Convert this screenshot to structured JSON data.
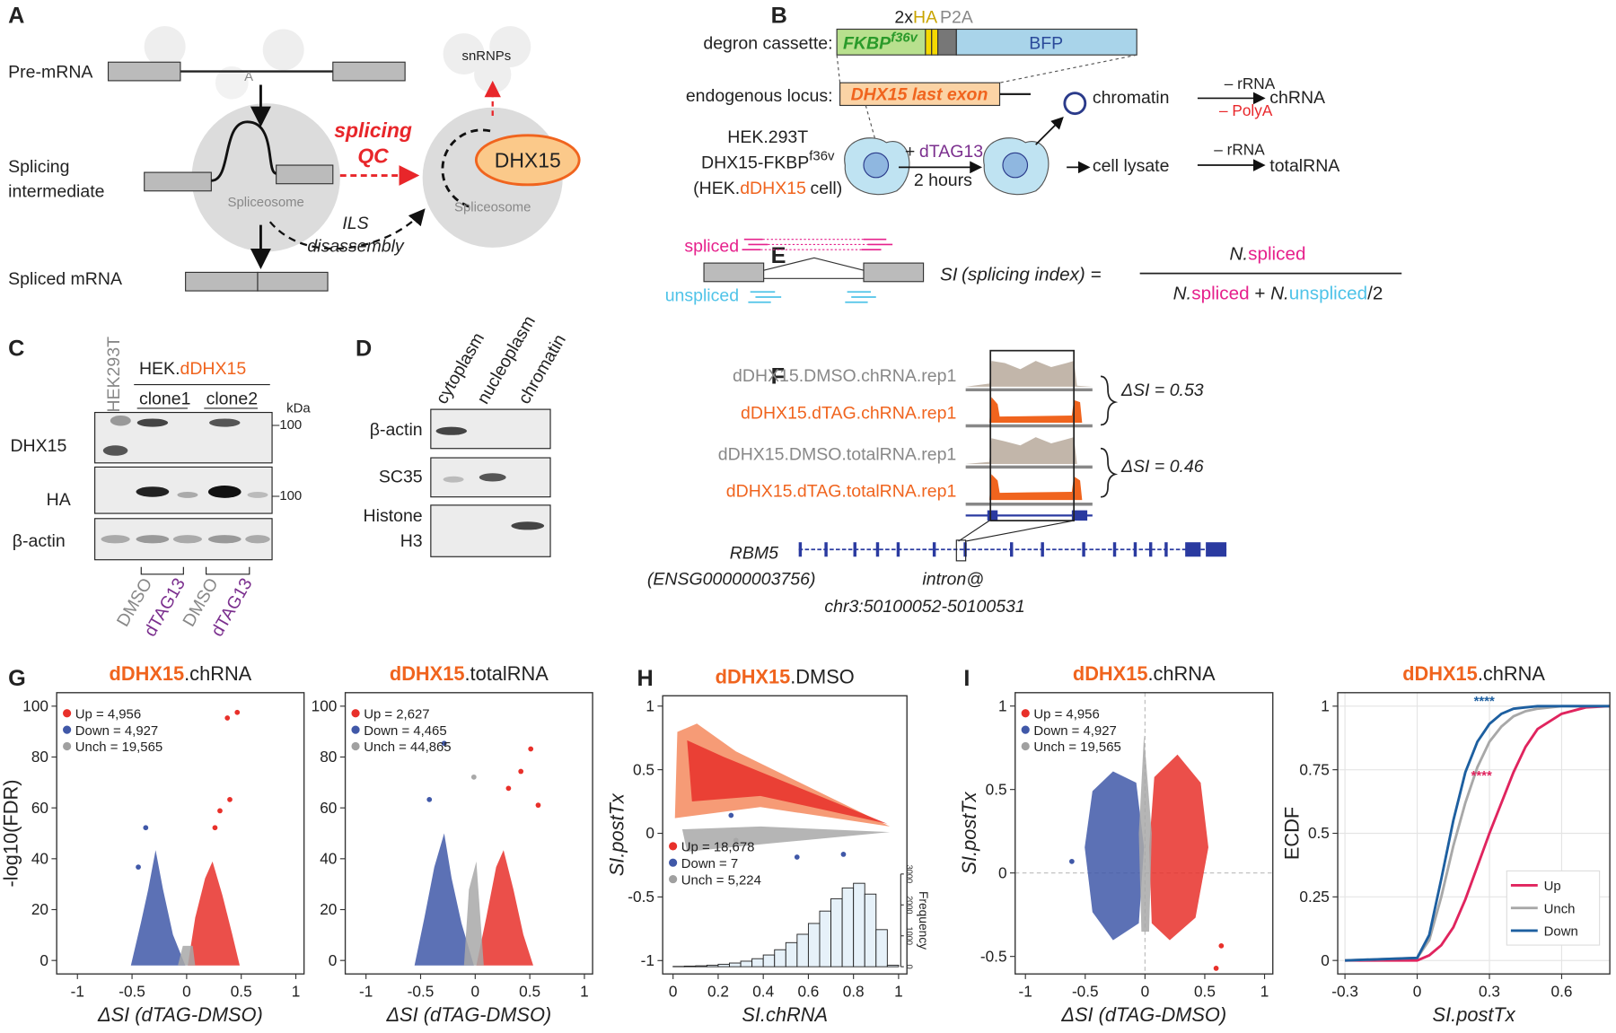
{
  "panels": {
    "a": "A",
    "b": "B",
    "c": "C",
    "d": "D",
    "e": "E",
    "f": "F",
    "g": "G",
    "h": "H",
    "i": "I"
  },
  "A": {
    "pre_mrna": "Pre-mRNA",
    "branch": "A",
    "intermediate": [
      "Splicing",
      "intermediate"
    ],
    "spliceosome_left": "Spliceosome",
    "spliceosome_right": "Spliceosome",
    "qc": [
      "splicing",
      "QC"
    ],
    "dhx15": "DHX15",
    "snrnps": "snRNPs",
    "ils": [
      "ILS",
      "disassembly"
    ],
    "spliced": "Spliced mRNA"
  },
  "B": {
    "cassette_label": "degron cassette:",
    "fkbp": "FKBP",
    "fkbp_sup": "f36v",
    "ha_prefix": "2x",
    "ha": "HA",
    "p2a": "P2A",
    "bfp": "BFP",
    "locus_label": "endogenous locus:",
    "exon": "DHX15 last exon",
    "cell_lines": [
      "HEK.293T",
      "DHX15-FKBP"
    ],
    "cell_sup": "f36v",
    "cell_name": [
      "(HEK.",
      "dDHX15",
      "cell)"
    ],
    "treatment_plus": "+",
    "treatment": "dTAG13",
    "duration": "2 hours",
    "chromatin": "chromatin",
    "rrna_top": "– rRNA",
    "polya": "– PolyA",
    "chrna": "chRNA",
    "lysate": "cell lysate",
    "rrna_bottom": "– rRNA",
    "totalrna": "totalRNA"
  },
  "C": {
    "parental": "HEK293T",
    "line": [
      "HEK.",
      "dDHX15"
    ],
    "clones": [
      "clone1",
      "clone2"
    ],
    "kda": "kDa",
    "rows": [
      "DHX15",
      "HA",
      "β-actin"
    ],
    "markers": [
      "–100",
      "–100"
    ],
    "lanes": [
      "DMSO",
      "dTAG13",
      "DMSO",
      "dTAG13"
    ]
  },
  "D": {
    "fractions": [
      "cytoplasm",
      "nucleoplasm",
      "chromatin"
    ],
    "rows": [
      "β-actin",
      "SC35",
      [
        "Histone",
        "H3"
      ]
    ]
  },
  "E": {
    "spliced": "spliced",
    "unspliced": "unspliced",
    "lhs": [
      "SI",
      "(splicing index) ="
    ],
    "num": [
      "N.",
      "spliced"
    ],
    "den": [
      "N.",
      "spliced",
      "+",
      "N.",
      "unspliced",
      "/2"
    ]
  },
  "F": {
    "tracks": [
      "dDHX15.DMSO.chRNA.rep1",
      "dDHX15.dTAG.chRNA.rep1",
      "dDHX15.DMSO.totalRNA.rep1",
      "dDHX15.dTAG.totalRNA.rep1"
    ],
    "delta": [
      "ΔSI = 0.53",
      "ΔSI = 0.46"
    ],
    "gene": "RBM5",
    "gene_id": "(ENSG00000003756)",
    "intron": [
      "intron@",
      "chr3:50100052-50100531"
    ]
  },
  "G": [
    {
      "type": "scatter",
      "title": [
        "dDHX15",
        ".chRNA"
      ],
      "series": [
        {
          "name": "Up = 4,956",
          "color": "#e8302a"
        },
        {
          "name": "Down = 4,927",
          "color": "#4058a8"
        },
        {
          "name": "Unch = 19,565",
          "color": "#a0a0a0"
        }
      ],
      "legend": "top-left",
      "xlabel": "ΔSI (dTAG-DMSO)",
      "ylabel": "-log10(FDR)",
      "xlim": [
        -1.19,
        1.075
      ],
      "xticks": [
        -1,
        -0.5,
        0,
        0.5,
        1
      ],
      "ylim": [
        -5.3,
        105.3
      ],
      "yticks": [
        0,
        20,
        40,
        60,
        80,
        100
      ]
    },
    {
      "type": "scatter",
      "title": [
        "dDHX15",
        ".totalRNA"
      ],
      "series": [
        {
          "name": "Up = 2,627",
          "color": "#e8302a"
        },
        {
          "name": "Down = 4,465",
          "color": "#4058a8"
        },
        {
          "name": "Unch = 44,865",
          "color": "#a0a0a0"
        }
      ],
      "legend": "top-left",
      "xlabel": "ΔSI (dTAG-DMSO)",
      "xlim": [
        -1.19,
        1.075
      ],
      "xticks": [
        -1,
        -0.5,
        0,
        0.5,
        1
      ],
      "ylim": [
        -5.3,
        105.3
      ],
      "yticks": [
        0,
        20,
        40,
        60,
        80,
        100
      ]
    }
  ],
  "H": {
    "type": "scatter",
    "title": [
      "dDHX15",
      ".DMSO"
    ],
    "series": [
      {
        "name": "Up = 18,678",
        "color": "#e8302a"
      },
      {
        "name": "Down = 7",
        "color": "#4058a8"
      },
      {
        "name": "Unch = 5,224",
        "color": "#a0a0a0"
      }
    ],
    "legend": "bottom-left",
    "xlabel": "SI.chRNA",
    "ylabel": "SI.postTx",
    "xlim": [
      -0.046,
      1.037
    ],
    "xticks": [
      0,
      0.2,
      0.4,
      0.6,
      0.8,
      1
    ],
    "ylim": [
      -1.105,
      1.081
    ],
    "yticks": [
      -1,
      -0.5,
      0,
      0.5,
      1
    ],
    "histogram": {
      "bins": [
        0,
        0.05,
        0.1,
        0.15,
        0.2,
        0.25,
        0.3,
        0.35,
        0.4,
        0.45,
        0.5,
        0.55,
        0.6,
        0.65,
        0.7,
        0.75,
        0.8,
        0.85,
        0.9,
        0.95,
        1
      ],
      "counts": [
        10,
        20,
        30,
        50,
        80,
        120,
        180,
        260,
        380,
        550,
        780,
        1050,
        1400,
        1800,
        2200,
        2550,
        2700,
        2350,
        1200,
        50
      ],
      "color": "#e6f1f9",
      "y2lim": [
        0,
        3000
      ],
      "y2ticks": [
        0,
        1000,
        2000,
        3000
      ],
      "y2label": "Frequency"
    }
  },
  "I": [
    {
      "type": "scatter",
      "title": [
        "dDHX15",
        ".chRNA"
      ],
      "series": [
        {
          "name": "Up = 4,956",
          "color": "#e8302a"
        },
        {
          "name": "Down = 4,927",
          "color": "#4058a8"
        },
        {
          "name": "Unch = 19,565",
          "color": "#a0a0a0"
        }
      ],
      "legend": "top-left",
      "zero_lines": true,
      "xlabel": "ΔSI (dTAG-DMSO)",
      "ylabel": "SI.postTx",
      "xlim": [
        -1.086,
        1.069
      ],
      "xticks": [
        -1,
        -0.5,
        0,
        0.5,
        1
      ],
      "ylim": [
        -0.605,
        1.08
      ],
      "yticks": [
        -0.5,
        0,
        0.5,
        1
      ]
    },
    {
      "type": "line",
      "title": [
        "dDHX15",
        ".chRNA"
      ],
      "grid": true,
      "legend": "bottom-right",
      "xlabel": "SI.postTx",
      "ylabel": "ECDF",
      "xlim": [
        -0.33,
        0.8
      ],
      "xticks": [
        -0.3,
        0,
        0.3,
        0.6
      ],
      "ylim": [
        -0.053,
        1.053
      ],
      "yticks": [
        0,
        0.25,
        0.5,
        0.75,
        1
      ],
      "x": [
        -0.3,
        0,
        0.05,
        0.1,
        0.15,
        0.2,
        0.25,
        0.3,
        0.35,
        0.4,
        0.45,
        0.5,
        0.6,
        0.7,
        0.8
      ],
      "series": [
        {
          "name": "Up",
          "color": "#e0245e",
          "values": [
            0,
            0,
            0.02,
            0.06,
            0.13,
            0.24,
            0.37,
            0.5,
            0.62,
            0.74,
            0.84,
            0.91,
            0.97,
            0.995,
            1
          ]
        },
        {
          "name": "Unch",
          "color": "#a8a8a8",
          "values": [
            0,
            0.01,
            0.08,
            0.25,
            0.45,
            0.62,
            0.76,
            0.86,
            0.92,
            0.96,
            0.98,
            0.99,
            1,
            1,
            1
          ]
        },
        {
          "name": "Down",
          "color": "#1d5fa0",
          "values": [
            0,
            0.01,
            0.1,
            0.32,
            0.55,
            0.74,
            0.86,
            0.93,
            0.97,
            0.99,
            0.995,
            1,
            1,
            1,
            1
          ]
        }
      ],
      "annotations": [
        {
          "text": "****",
          "color": "#1d5fa0"
        },
        {
          "text": "****",
          "color": "#e0245e"
        }
      ]
    }
  ]
}
